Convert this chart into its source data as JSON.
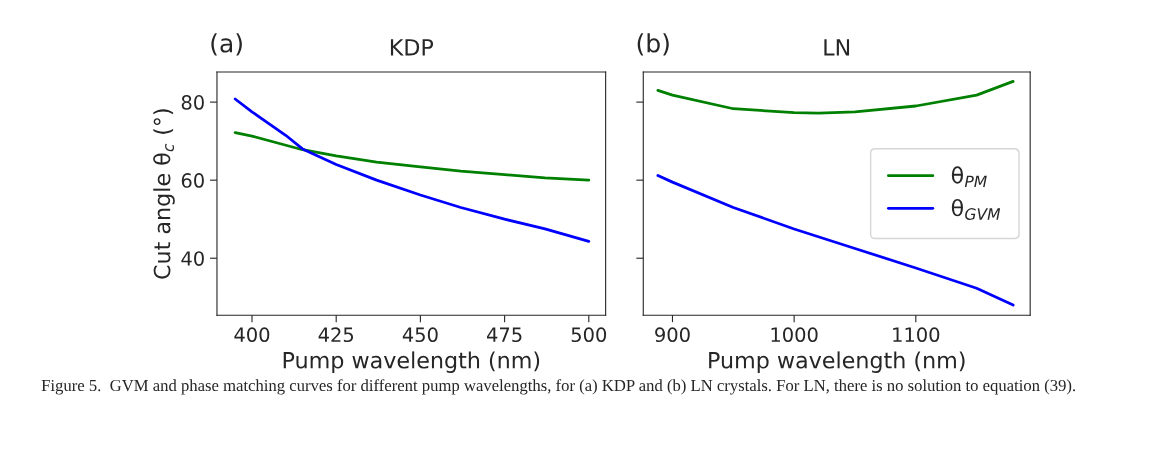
{
  "chart_data": [
    {
      "type": "line",
      "title": "KDP",
      "xlabel": "Pump wavelength (nm)",
      "ylabel": "Cut angle θ$_{c}$ (°)",
      "xlim": [
        389.6,
        505
      ],
      "xticks": [
        400,
        425,
        450,
        475,
        500
      ],
      "ylim": [
        25.4,
        87.7
      ],
      "yticks": [
        40,
        60,
        80
      ],
      "grid": false,
      "legend": false,
      "annotations": [
        "(a)",
        "Figure 5.  GVM and phase matching curves for different pump wavelengths, for (a) KDP and (b) LN crystals. For LN, there is no solution to equation (39)."
      ],
      "series": [
        {
          "color": "#008000",
          "x": [
            395,
            400,
            415,
            425,
            437,
            450,
            462,
            475,
            487,
            500
          ],
          "values": [
            72.2,
            71.3,
            67.8,
            66.2,
            64.6,
            63.4,
            62.3,
            61.4,
            60.6,
            60.0
          ]
        },
        {
          "color": "#0000ff",
          "x": [
            395,
            400,
            405,
            410,
            415,
            425,
            437,
            450,
            462,
            475,
            487,
            500
          ],
          "values": [
            80.8,
            77.5,
            74.5,
            71.5,
            68.0,
            64.0,
            60.0,
            56.2,
            53.0,
            50.0,
            47.5,
            44.3
          ]
        }
      ]
    },
    {
      "type": "line",
      "title": "LN",
      "xlabel": "Pump wavelength (nm)",
      "xlim": [
        876,
        1194
      ],
      "xticks": [
        900,
        1000,
        1100
      ],
      "ylim": [
        25.4,
        87.7
      ],
      "yticks": [
        40,
        60,
        80
      ],
      "tick_labels": "x",
      "grid": false,
      "legend": "right",
      "annotations": [
        "(b)"
      ],
      "series": [
        {
          "name": "θ$_{PM}$",
          "color": "#008000",
          "x": [
            888,
            900,
            950,
            1000,
            1020,
            1050,
            1100,
            1150,
            1180
          ],
          "values": [
            83.0,
            81.8,
            78.3,
            77.3,
            77.2,
            77.5,
            79.0,
            81.8,
            85.3
          ]
        },
        {
          "name": "θ$_{GVM}$",
          "color": "#0000ff",
          "x": [
            888,
            900,
            950,
            1000,
            1050,
            1100,
            1150,
            1180
          ],
          "values": [
            61.2,
            59.5,
            53.0,
            47.5,
            42.5,
            37.5,
            32.3,
            28.0
          ]
        }
      ]
    }
  ]
}
